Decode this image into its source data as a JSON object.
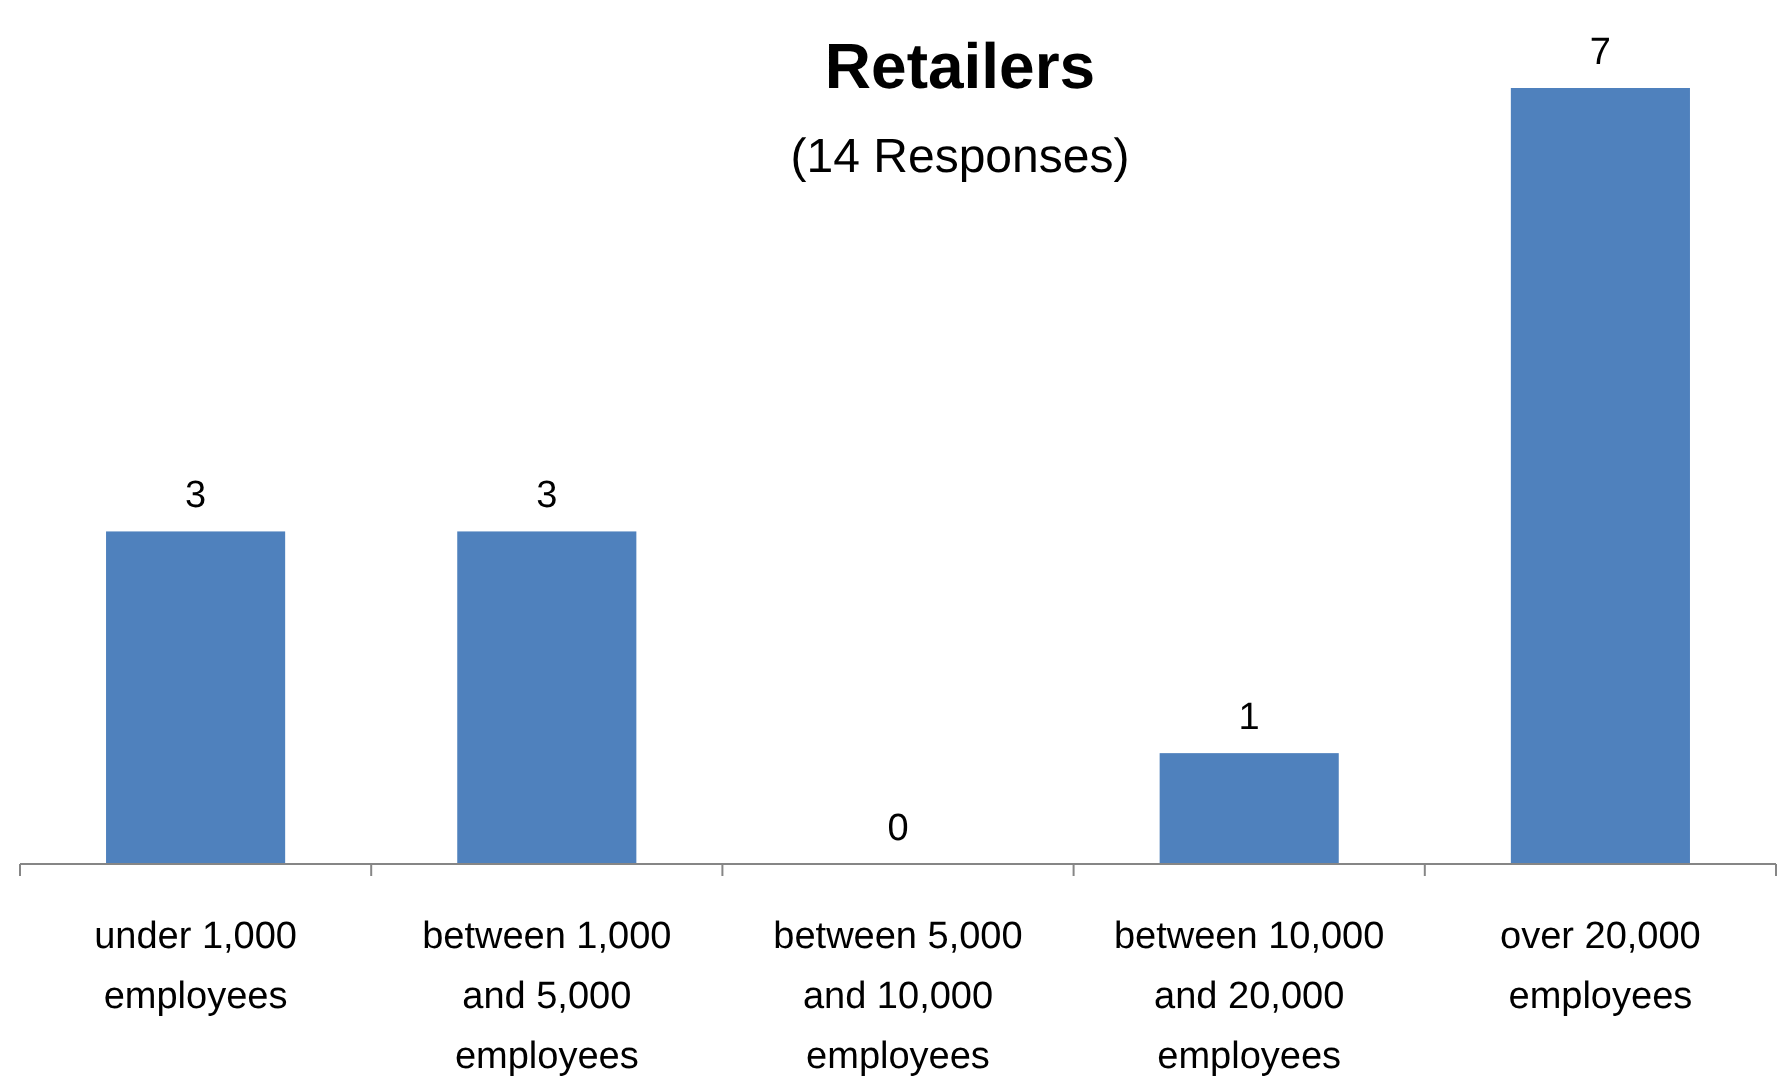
{
  "chart_data": {
    "type": "bar",
    "title": "Retailers",
    "subtitle": "(14 Responses)",
    "categories": [
      "under 1,000 employees",
      "between 1,000 and 5,000 employees",
      "between 5,000 and 10,000 employees",
      "between 10,000 and 20,000 employees",
      "over 20,000 employees"
    ],
    "values": [
      3,
      3,
      0,
      1,
      7
    ],
    "color": "#4f81bd",
    "data_labels": true
  }
}
